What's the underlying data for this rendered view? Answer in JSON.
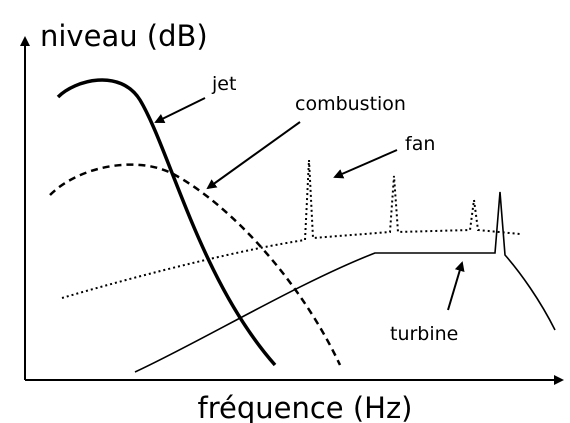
{
  "axes": {
    "y_label": "niveau (dB)",
    "x_label": "fréquence (Hz)"
  },
  "curves": [
    {
      "label": "jet"
    },
    {
      "label": "combustion"
    },
    {
      "label": "fan"
    },
    {
      "label": "turbine"
    }
  ]
}
